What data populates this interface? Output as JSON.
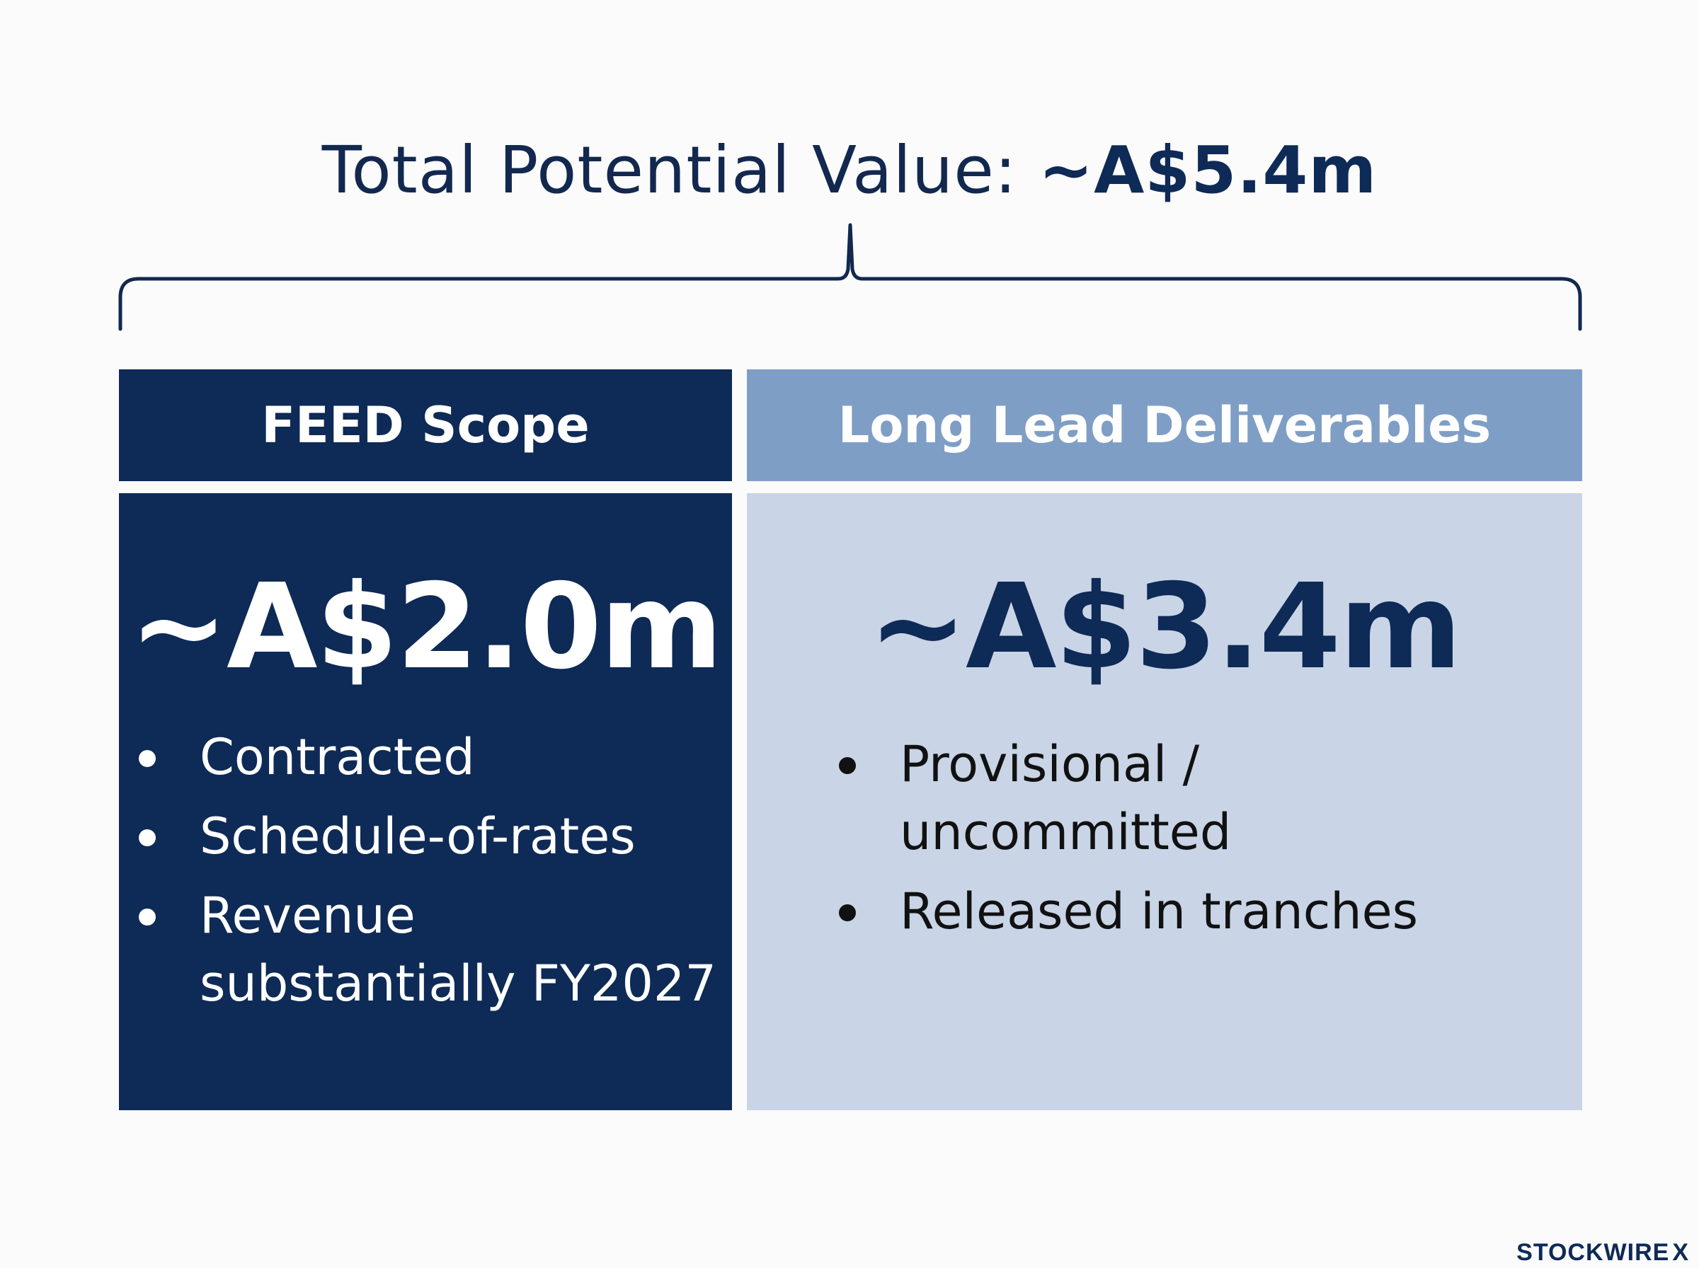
{
  "total": {
    "label": "Total Potential Value:",
    "value": "~A$5.4m"
  },
  "panels": [
    {
      "header": "FEED Scope",
      "value": "~A$2.0m",
      "bullets": [
        "Contracted",
        "Schedule-of-rates",
        "Revenue substantially FY2027"
      ]
    },
    {
      "header": "Long Lead Deliverables",
      "value": "~A$3.4m",
      "bullets": [
        "Provisional / uncommitted",
        "Released in tranches"
      ]
    }
  ],
  "brand": {
    "name": "STOCKWIRE",
    "mark": "X"
  },
  "colors": {
    "navy": "#0e2a56",
    "mid_blue": "#7f9ec6",
    "light_blue": "#c9d5e6",
    "background": "#fbfbfc"
  }
}
